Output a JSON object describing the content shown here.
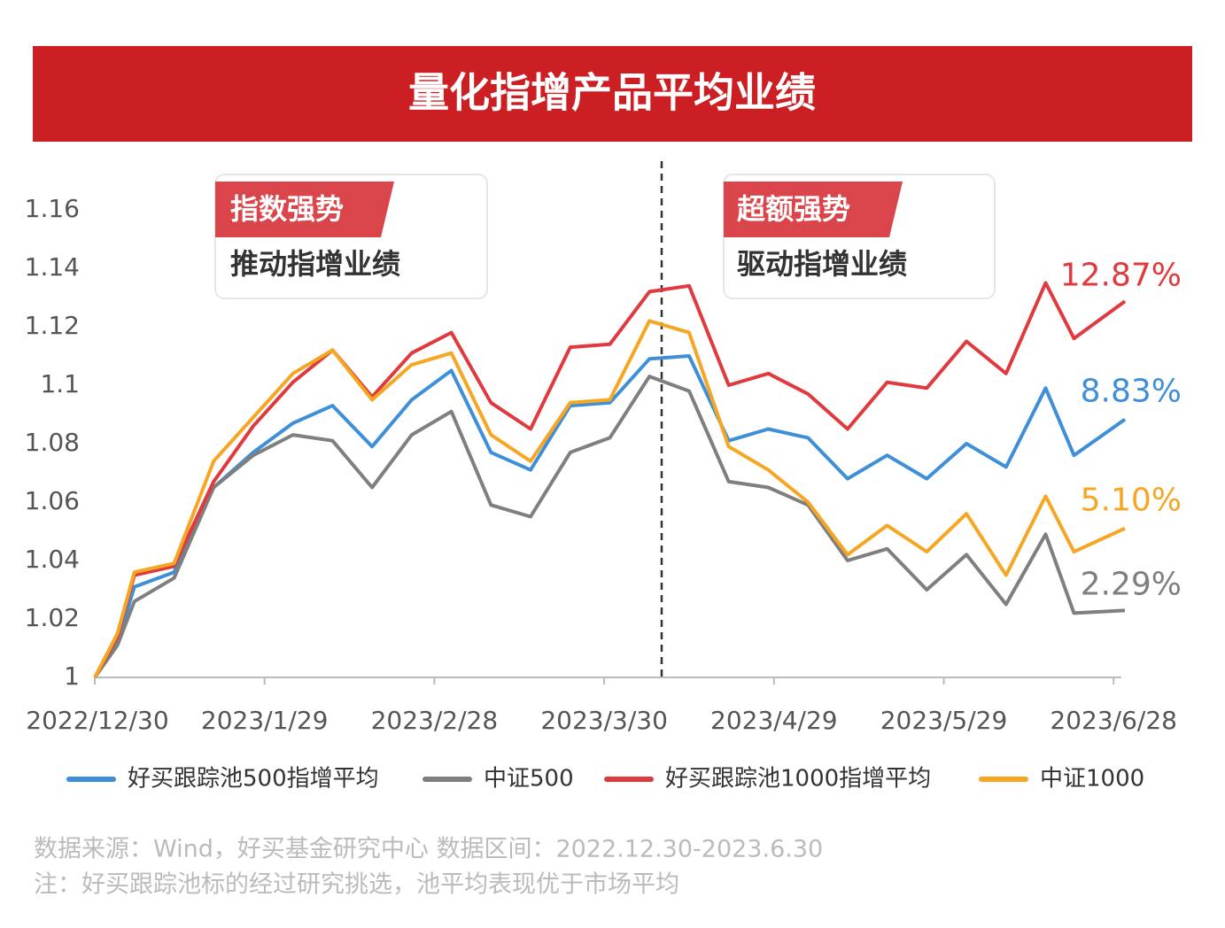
{
  "chart_data": {
    "type": "line",
    "title": "量化指增产品平均业绩",
    "x": [
      "2022/12/30",
      "2023/1/3",
      "2023/1/6",
      "2023/1/13",
      "2023/1/20",
      "2023/1/27",
      "2023/2/3",
      "2023/2/10",
      "2023/2/17",
      "2023/2/24",
      "2023/3/3",
      "2023/3/10",
      "2023/3/17",
      "2023/3/24",
      "2023/3/31",
      "2023/4/7",
      "2023/4/14",
      "2023/4/21",
      "2023/4/28",
      "2023/5/5",
      "2023/5/12",
      "2023/5/19",
      "2023/5/26",
      "2023/6/2",
      "2023/6/9",
      "2023/6/16",
      "2023/6/21",
      "2023/6/30"
    ],
    "xlim": [
      "2022/12/30",
      "2023/6/30"
    ],
    "xticks": [
      "2022/12/30",
      "2023/1/29",
      "2023/2/28",
      "2023/3/30",
      "2023/4/29",
      "2023/5/29",
      "2023/6/28"
    ],
    "ylim": [
      1,
      1.16
    ],
    "yticks": [
      1,
      1.02,
      1.04,
      1.06,
      1.08,
      1.1,
      1.12,
      1.14,
      1.16
    ],
    "grid": false,
    "series": [
      {
        "name": "好买跟踪池500指增平均",
        "color": "#3f8fd8",
        "end_label": "8.83%",
        "values": [
          1.0,
          1.012,
          1.031,
          1.036,
          1.065,
          1.077,
          1.087,
          1.093,
          1.079,
          1.095,
          1.105,
          1.077,
          1.071,
          1.093,
          1.094,
          1.109,
          1.11,
          1.081,
          1.085,
          1.082,
          1.068,
          1.076,
          1.068,
          1.08,
          1.072,
          1.099,
          1.076,
          1.0883
        ]
      },
      {
        "name": "中证500",
        "color": "#7f7f7f",
        "end_label": "2.29%",
        "values": [
          1.0,
          1.011,
          1.026,
          1.034,
          1.065,
          1.076,
          1.083,
          1.081,
          1.065,
          1.083,
          1.091,
          1.059,
          1.055,
          1.077,
          1.082,
          1.103,
          1.098,
          1.067,
          1.065,
          1.059,
          1.04,
          1.044,
          1.03,
          1.042,
          1.025,
          1.049,
          1.022,
          1.0229
        ]
      },
      {
        "name": "好买跟踪池1000指增平均",
        "color": "#e03a3e",
        "end_label": "12.87%",
        "values": [
          1.0,
          1.014,
          1.035,
          1.038,
          1.067,
          1.086,
          1.101,
          1.112,
          1.096,
          1.111,
          1.118,
          1.094,
          1.085,
          1.113,
          1.114,
          1.132,
          1.134,
          1.1,
          1.104,
          1.097,
          1.085,
          1.101,
          1.099,
          1.115,
          1.104,
          1.135,
          1.116,
          1.1287
        ]
      },
      {
        "name": "中证1000",
        "color": "#f5a623",
        "end_label": "5.10%",
        "values": [
          1.0,
          1.015,
          1.036,
          1.039,
          1.074,
          1.089,
          1.104,
          1.112,
          1.095,
          1.107,
          1.111,
          1.083,
          1.074,
          1.094,
          1.095,
          1.122,
          1.118,
          1.079,
          1.071,
          1.06,
          1.042,
          1.052,
          1.043,
          1.056,
          1.035,
          1.062,
          1.043,
          1.051
        ]
      }
    ],
    "callouts": [
      {
        "tag": "指数强势",
        "text": "推动指增业绩"
      },
      {
        "tag": "超额强势",
        "text": "驱动指增业绩"
      }
    ],
    "footnotes": [
      "数据来源：Wind，好买基金研究中心  数据区间：2022.12.30-2023.6.30",
      "注：好买跟踪池标的经过研究挑选，池平均表现优于市场平均"
    ]
  }
}
